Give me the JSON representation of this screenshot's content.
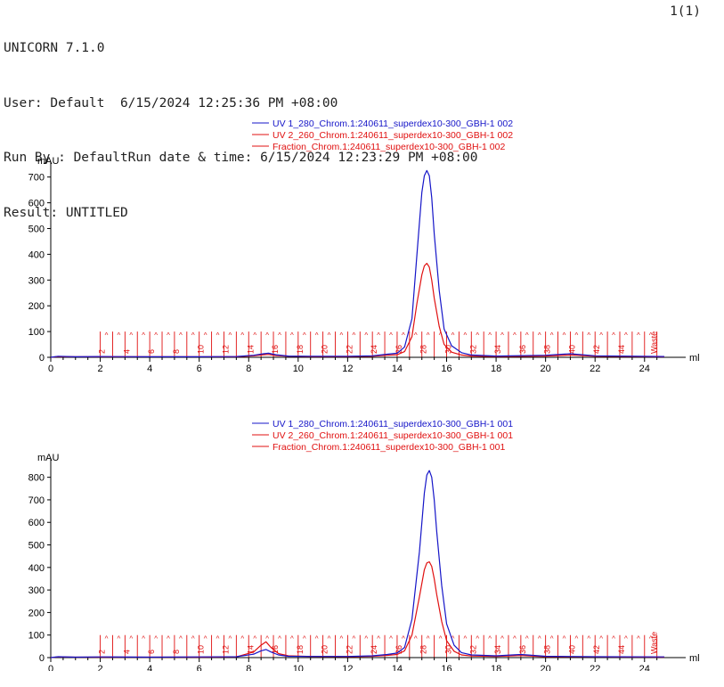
{
  "header": {
    "software": "UNICORN 7.1.0",
    "user_line": "User: Default  6/15/2024 12:25:36 PM +08:00",
    "run_line": "Run By : DefaultRun date & time: 6/15/2024 12:23:29 PM +08:00",
    "result_line": "Result: UNTITLED",
    "page": "1(1)"
  },
  "colors": {
    "uv280": "#1515c8",
    "uv260": "#e01010",
    "fraction": "#e01010",
    "axis": "#000000"
  },
  "chart_data": [
    {
      "type": "line",
      "ylabel": "mAU",
      "xlabel": "ml",
      "xlim": [
        0,
        24.8
      ],
      "ylim": [
        0,
        730
      ],
      "xticks": [
        0,
        2,
        4,
        6,
        8,
        10,
        12,
        14,
        16,
        18,
        20,
        22,
        24
      ],
      "yticks": [
        0,
        100,
        200,
        300,
        400,
        500,
        600,
        700
      ],
      "legend": [
        "UV 1_280_Chrom.1:240611_superdex10-300_GBH-1 002",
        "UV 2_260_Chrom.1:240611_superdex10-300_GBH-1 002",
        "Fraction_Chrom.1:240611_superdex10-300_GBH-1 002"
      ],
      "series": [
        {
          "name": "UV 1_280_Chrom.1:240611_superdex10-300_GBH-1 002",
          "color": "#1515c8",
          "x": [
            0,
            0.3,
            1,
            2,
            4,
            6,
            7.5,
            8.2,
            8.6,
            8.8,
            9.1,
            9.6,
            10.5,
            12,
            13,
            13.6,
            14,
            14.3,
            14.6,
            14.8,
            15.0,
            15.1,
            15.2,
            15.3,
            15.4,
            15.5,
            15.7,
            15.9,
            16.2,
            16.6,
            17,
            18,
            20,
            21,
            22,
            24.8
          ],
          "y": [
            0,
            4,
            2,
            3,
            2,
            2,
            3,
            8,
            14,
            16,
            10,
            5,
            4,
            4,
            6,
            12,
            16,
            40,
            150,
            400,
            640,
            705,
            725,
            705,
            620,
            480,
            260,
            110,
            45,
            18,
            9,
            5,
            8,
            14,
            6,
            3
          ]
        },
        {
          "name": "UV 2_260_Chrom.1:240611_superdex10-300_GBH-1 002",
          "color": "#e01010",
          "x": [
            0,
            0.3,
            1,
            2,
            4,
            6,
            7.5,
            8.2,
            8.6,
            8.8,
            9.1,
            9.6,
            10.5,
            12,
            13,
            13.6,
            14,
            14.3,
            14.6,
            14.8,
            15.0,
            15.1,
            15.2,
            15.3,
            15.4,
            15.5,
            15.7,
            15.9,
            16.2,
            16.6,
            17,
            18,
            20,
            21,
            22,
            24.8
          ],
          "y": [
            0,
            3,
            2,
            2,
            2,
            2,
            2,
            6,
            10,
            11,
            7,
            4,
            3,
            3,
            4,
            8,
            10,
            22,
            80,
            210,
            320,
            355,
            365,
            350,
            300,
            230,
            120,
            50,
            20,
            9,
            5,
            3,
            5,
            9,
            4,
            2
          ]
        }
      ],
      "fractions": {
        "start": 2,
        "end": 24.6,
        "width": 0.5,
        "height": 100,
        "labels": [
          "2",
          "4",
          "6",
          "8",
          "10",
          "12",
          "14",
          "16",
          "18",
          "20",
          "22",
          "24",
          "26",
          "28",
          "30",
          "32",
          "34",
          "36",
          "38",
          "40",
          "42",
          "44",
          "Waste"
        ]
      }
    },
    {
      "type": "line",
      "ylabel": "mAU",
      "xlabel": "ml",
      "xlim": [
        0,
        24.8
      ],
      "ylim": [
        0,
        850
      ],
      "xticks": [
        0,
        2,
        4,
        6,
        8,
        10,
        12,
        14,
        16,
        18,
        20,
        22,
        24
      ],
      "yticks": [
        0,
        100,
        200,
        300,
        400,
        500,
        600,
        700,
        800
      ],
      "legend": [
        "UV 1_280_Chrom.1:240611_superdex10-300_GBH-1 001",
        "UV 2_260_Chrom.1:240611_superdex10-300_GBH-1 001",
        "Fraction_Chrom.1:240611_superdex10-300_GBH-1 001"
      ],
      "series": [
        {
          "name": "UV 1_280_Chrom.1:240611_superdex10-300_GBH-1 001",
          "color": "#1515c8",
          "x": [
            0,
            0.3,
            1,
            2,
            4,
            6,
            7.5,
            8.2,
            8.5,
            8.7,
            8.9,
            9.2,
            9.6,
            10.5,
            12,
            13,
            13.6,
            14,
            14.3,
            14.6,
            14.9,
            15.1,
            15.2,
            15.3,
            15.4,
            15.5,
            15.6,
            15.8,
            16.0,
            16.3,
            16.6,
            17,
            18,
            19,
            20,
            22,
            24.8
          ],
          "y": [
            0,
            4,
            2,
            3,
            2,
            3,
            4,
            15,
            30,
            36,
            25,
            12,
            6,
            5,
            5,
            8,
            14,
            20,
            45,
            170,
            470,
            730,
            810,
            830,
            800,
            700,
            560,
            320,
            150,
            55,
            22,
            12,
            8,
            14,
            6,
            4,
            3
          ]
        },
        {
          "name": "UV 2_260_Chrom.1:240611_superdex10-300_GBH-1 001",
          "color": "#e01010",
          "x": [
            0,
            0.3,
            1,
            2,
            4,
            6,
            7.5,
            8.2,
            8.5,
            8.7,
            8.9,
            9.2,
            9.6,
            10.5,
            12,
            13,
            13.6,
            14,
            14.3,
            14.6,
            14.9,
            15.1,
            15.2,
            15.3,
            15.4,
            15.5,
            15.6,
            15.8,
            16.0,
            16.3,
            16.6,
            17,
            18,
            19,
            20,
            22,
            24.8
          ],
          "y": [
            0,
            3,
            2,
            2,
            2,
            2,
            3,
            25,
            55,
            70,
            45,
            18,
            8,
            5,
            4,
            6,
            10,
            14,
            30,
            100,
            270,
            390,
            420,
            425,
            405,
            350,
            280,
            160,
            75,
            28,
            12,
            7,
            5,
            9,
            4,
            3,
            2
          ]
        }
      ],
      "fractions": {
        "start": 2,
        "end": 24.6,
        "width": 0.5,
        "height": 100,
        "labels": [
          "2",
          "4",
          "6",
          "8",
          "10",
          "12",
          "14",
          "16",
          "18",
          "20",
          "22",
          "24",
          "26",
          "28",
          "30",
          "32",
          "34",
          "36",
          "38",
          "40",
          "42",
          "44",
          "Waste"
        ]
      }
    }
  ]
}
